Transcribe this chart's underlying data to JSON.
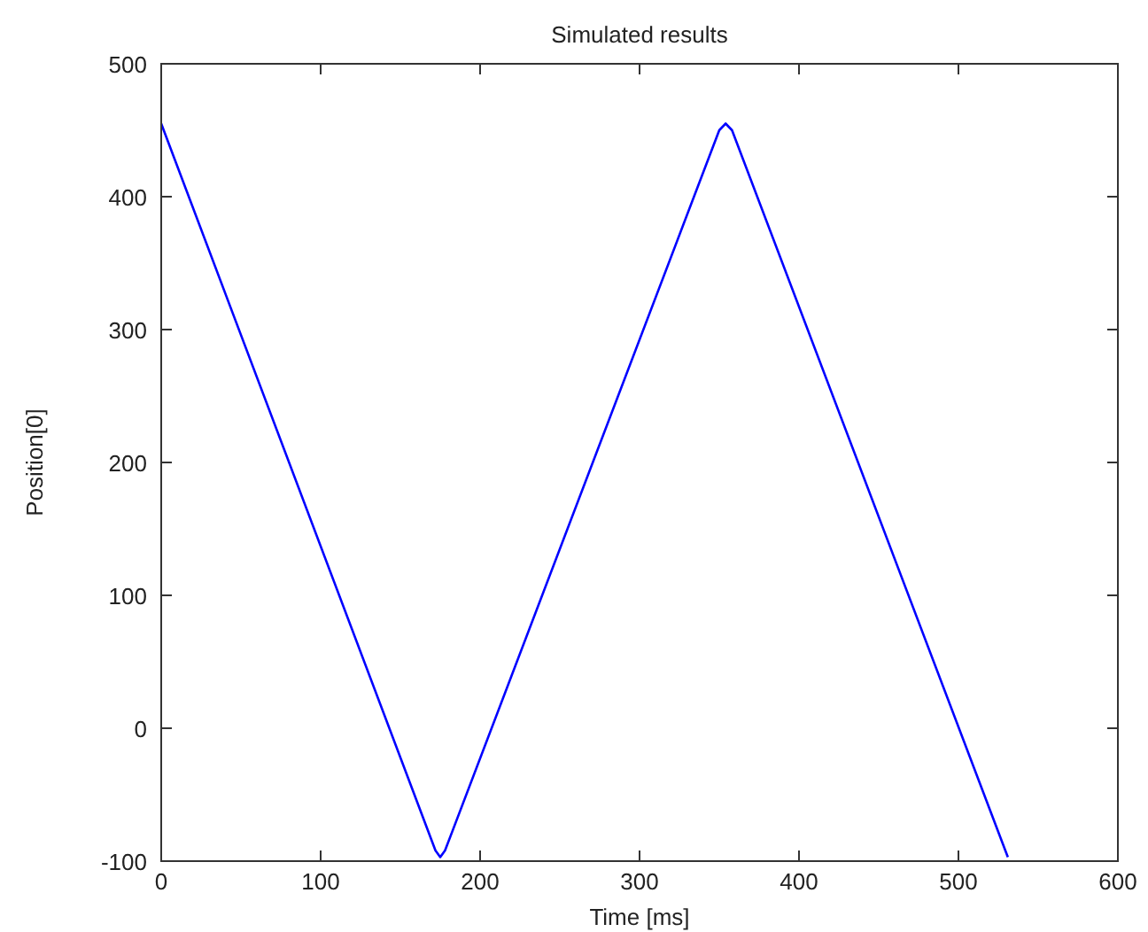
{
  "chart_data": {
    "type": "line",
    "title": "Simulated results",
    "xlabel": "Time [ms]",
    "ylabel": "Position[0]",
    "series": [
      {
        "color": "#0000ff",
        "x": [
          0,
          172,
          175,
          178,
          350,
          354,
          358,
          531
        ],
        "values": [
          455,
          -92,
          -97,
          -92,
          450,
          455,
          450,
          -97
        ]
      }
    ],
    "xlim": [
      0,
      600
    ],
    "xticks": [
      0,
      100,
      200,
      300,
      400,
      500,
      600
    ],
    "ylim": [
      -100,
      500
    ],
    "yticks": [
      -100,
      0,
      100,
      200,
      300,
      400,
      500
    ],
    "grid": false,
    "line_style": "solid"
  }
}
